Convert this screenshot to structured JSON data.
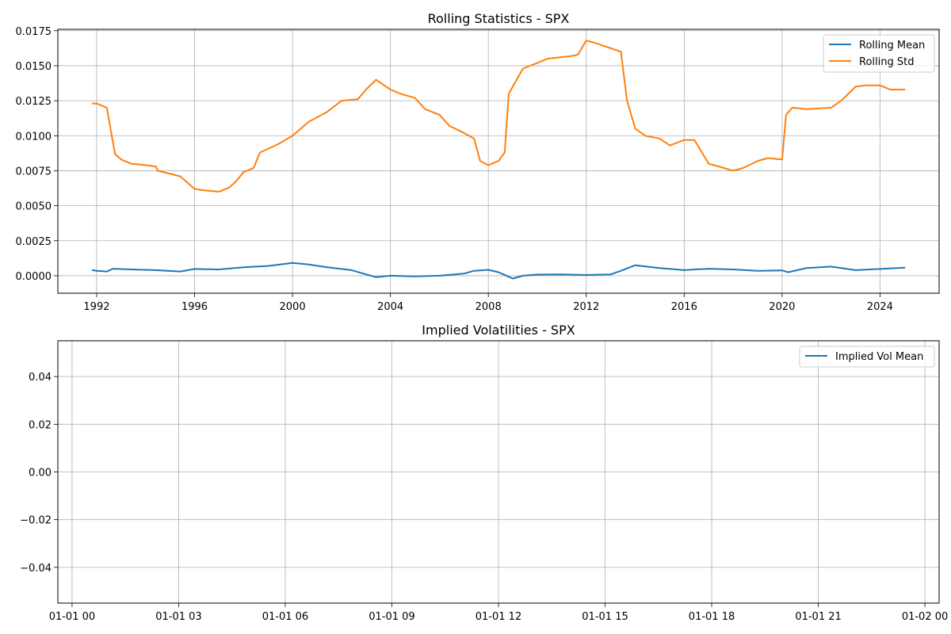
{
  "colors": {
    "series_1": "#1f77b4",
    "series_2": "#ff7f0e",
    "grid": "#b0b0b0"
  },
  "chart_data": [
    {
      "type": "line",
      "title": "Rolling Statistics - SPX",
      "xlabel": "",
      "ylabel": "",
      "x_type": "date",
      "xlim": [
        "1990-06-01",
        "2026-06-01"
      ],
      "ylim": [
        -0.00125,
        0.0176
      ],
      "x_ticks": [
        "1992-01-01",
        "1996-01-01",
        "2000-01-01",
        "2004-01-01",
        "2008-01-01",
        "2012-01-01",
        "2016-01-01",
        "2020-01-01",
        "2024-01-01"
      ],
      "x_tick_labels": [
        "1992",
        "1996",
        "2000",
        "2004",
        "2008",
        "2012",
        "2016",
        "2020",
        "2024"
      ],
      "y_ticks": [
        0.0,
        0.0025,
        0.005,
        0.0075,
        0.01,
        0.0125,
        0.015,
        0.0175
      ],
      "y_tick_labels": [
        "0.0000",
        "0.0025",
        "0.0050",
        "0.0075",
        "0.0100",
        "0.0125",
        "0.0150",
        "0.0175"
      ],
      "grid": true,
      "legend": "upper right",
      "series": [
        {
          "name": "Rolling Mean",
          "color": "#1f77b4",
          "x": [
            "1991-11-01",
            "1992-01-01",
            "1992-06-01",
            "1992-09-01",
            "1993-06-01",
            "1994-06-01",
            "1995-06-01",
            "1996-01-01",
            "1997-01-01",
            "1998-01-01",
            "1999-01-01",
            "2000-01-01",
            "2000-09-01",
            "2001-06-01",
            "2002-06-01",
            "2003-01-01",
            "2003-06-01",
            "2004-01-01",
            "2005-01-01",
            "2006-01-01",
            "2007-01-01",
            "2007-06-01",
            "2008-01-01",
            "2008-06-01",
            "2009-01-01",
            "2009-06-01",
            "2010-01-01",
            "2011-01-01",
            "2012-01-01",
            "2013-01-01",
            "2013-06-01",
            "2014-01-01",
            "2015-01-01",
            "2016-01-01",
            "2016-06-01",
            "2017-01-01",
            "2018-01-01",
            "2019-01-01",
            "2020-01-01",
            "2020-04-01",
            "2021-01-01",
            "2022-01-01",
            "2022-06-01",
            "2023-01-01",
            "2024-01-01",
            "2025-01-01"
          ],
          "values": [
            0.0004,
            0.00035,
            0.0003,
            0.0005,
            0.00045,
            0.0004,
            0.0003,
            0.00048,
            0.00045,
            0.0006,
            0.0007,
            0.00092,
            0.0008,
            0.0006,
            0.0004,
            0.0001,
            -0.0001,
            0.0,
            -5e-05,
            0.0,
            0.00015,
            0.00035,
            0.00042,
            0.00025,
            -0.0002,
            0.0,
            8e-05,
            0.0001,
            5e-05,
            0.0001,
            0.00035,
            0.00075,
            0.00055,
            0.0004,
            0.00045,
            0.0005,
            0.00045,
            0.00035,
            0.00038,
            0.00025,
            0.00055,
            0.00065,
            0.00055,
            0.0004,
            0.00048,
            0.00058
          ]
        },
        {
          "name": "Rolling Std",
          "color": "#ff7f0e",
          "x": [
            "1991-11-01",
            "1992-01-01",
            "1992-06-01",
            "1992-09-01",
            "1992-10-01",
            "1993-01-01",
            "1993-06-01",
            "1994-01-01",
            "1994-06-01",
            "1994-07-01",
            "1995-06-01",
            "1996-01-01",
            "1996-06-01",
            "1997-01-01",
            "1997-06-01",
            "1997-09-01",
            "1998-01-01",
            "1998-06-01",
            "1998-09-01",
            "1999-06-01",
            "2000-01-01",
            "2000-09-01",
            "2001-06-01",
            "2002-01-01",
            "2002-09-01",
            "2003-01-01",
            "2003-06-01",
            "2004-01-01",
            "2004-06-01",
            "2005-01-01",
            "2005-06-01",
            "2006-01-01",
            "2006-06-01",
            "2007-01-01",
            "2007-06-01",
            "2007-09-01",
            "2008-01-01",
            "2008-06-01",
            "2008-09-01",
            "2008-11-01",
            "2009-06-01",
            "2010-01-01",
            "2010-06-01",
            "2011-06-01",
            "2011-09-01",
            "2012-01-01",
            "2012-06-01",
            "2013-06-01",
            "2013-09-01",
            "2014-01-01",
            "2014-06-01",
            "2015-01-01",
            "2015-06-01",
            "2016-01-01",
            "2016-06-01",
            "2017-01-01",
            "2017-06-01",
            "2018-01-01",
            "2018-06-01",
            "2019-01-01",
            "2019-06-01",
            "2020-01-01",
            "2020-03-01",
            "2020-06-01",
            "2021-01-01",
            "2022-01-01",
            "2022-06-01",
            "2023-01-01",
            "2023-06-01",
            "2024-01-01",
            "2024-06-01",
            "2025-01-01"
          ],
          "values": [
            0.0123,
            0.0123,
            0.012,
            0.0095,
            0.0087,
            0.0083,
            0.008,
            0.0079,
            0.0078,
            0.0075,
            0.0071,
            0.0062,
            0.0061,
            0.006,
            0.0063,
            0.0067,
            0.0074,
            0.0077,
            0.0088,
            0.0094,
            0.01,
            0.011,
            0.0117,
            0.0125,
            0.0126,
            0.0133,
            0.014,
            0.0133,
            0.013,
            0.0127,
            0.0119,
            0.0115,
            0.0107,
            0.0102,
            0.0098,
            0.0082,
            0.0079,
            0.0082,
            0.0088,
            0.013,
            0.0148,
            0.0152,
            0.0155,
            0.0157,
            0.0158,
            0.0168,
            0.0166,
            0.016,
            0.0125,
            0.0105,
            0.01,
            0.0098,
            0.0093,
            0.0097,
            0.0097,
            0.008,
            0.0078,
            0.0075,
            0.0077,
            0.0082,
            0.0084,
            0.0083,
            0.0115,
            0.012,
            0.0119,
            0.012,
            0.0125,
            0.0135,
            0.0136,
            0.0136,
            0.0133,
            0.0133
          ]
        }
      ]
    },
    {
      "type": "line",
      "title": "Implied Volatilities - SPX",
      "xlabel": "",
      "ylabel": "",
      "xlim": [
        -0.4,
        24.4
      ],
      "ylim": [
        -0.055,
        0.055
      ],
      "x_ticks": [
        0,
        3,
        6,
        9,
        12,
        15,
        18,
        21,
        24
      ],
      "x_tick_labels": [
        "01-01 00",
        "01-01 03",
        "01-01 06",
        "01-01 09",
        "01-01 12",
        "01-01 15",
        "01-01 18",
        "01-01 21",
        "01-02 00"
      ],
      "y_ticks": [
        -0.04,
        -0.02,
        0.0,
        0.02,
        0.04
      ],
      "y_tick_labels": [
        "−0.04",
        "−0.02",
        "0.00",
        "0.02",
        "0.04"
      ],
      "grid": true,
      "legend": "upper right",
      "series": [
        {
          "name": "Implied Vol Mean",
          "color": "#1f77b4",
          "x": [],
          "values": []
        }
      ]
    }
  ]
}
